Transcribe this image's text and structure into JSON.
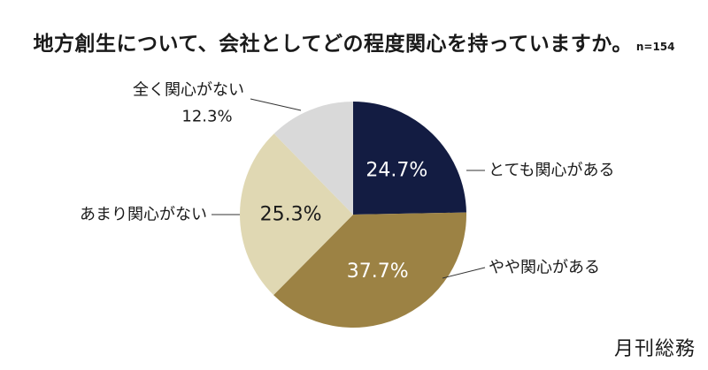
{
  "title": "地方創生について、会社としてどの程度関心を持っていますか。",
  "sample_size": "n=154",
  "brand": "月刊総務",
  "chart_data": {
    "type": "pie",
    "title": "地方創生について、会社としてどの程度関心を持っていますか。",
    "start_angle_deg": 0,
    "direction": "clockwise",
    "slices": [
      {
        "label": "とても関心がある",
        "value": 24.7,
        "value_label": "24.7%",
        "color": "#131c42",
        "text_color": "#ffffff"
      },
      {
        "label": "やや関心がある",
        "value": 37.7,
        "value_label": "37.7%",
        "color": "#9c8244",
        "text_color": "#ffffff"
      },
      {
        "label": "あまり関心がない",
        "value": 25.3,
        "value_label": "25.3%",
        "color": "#e0d8b3",
        "text_color": "#1a1a1a"
      },
      {
        "label": "全く関心がない",
        "value": 12.3,
        "value_label": "12.3%",
        "color": "#d9d9d9",
        "text_color": "#1a1a1a"
      }
    ]
  }
}
